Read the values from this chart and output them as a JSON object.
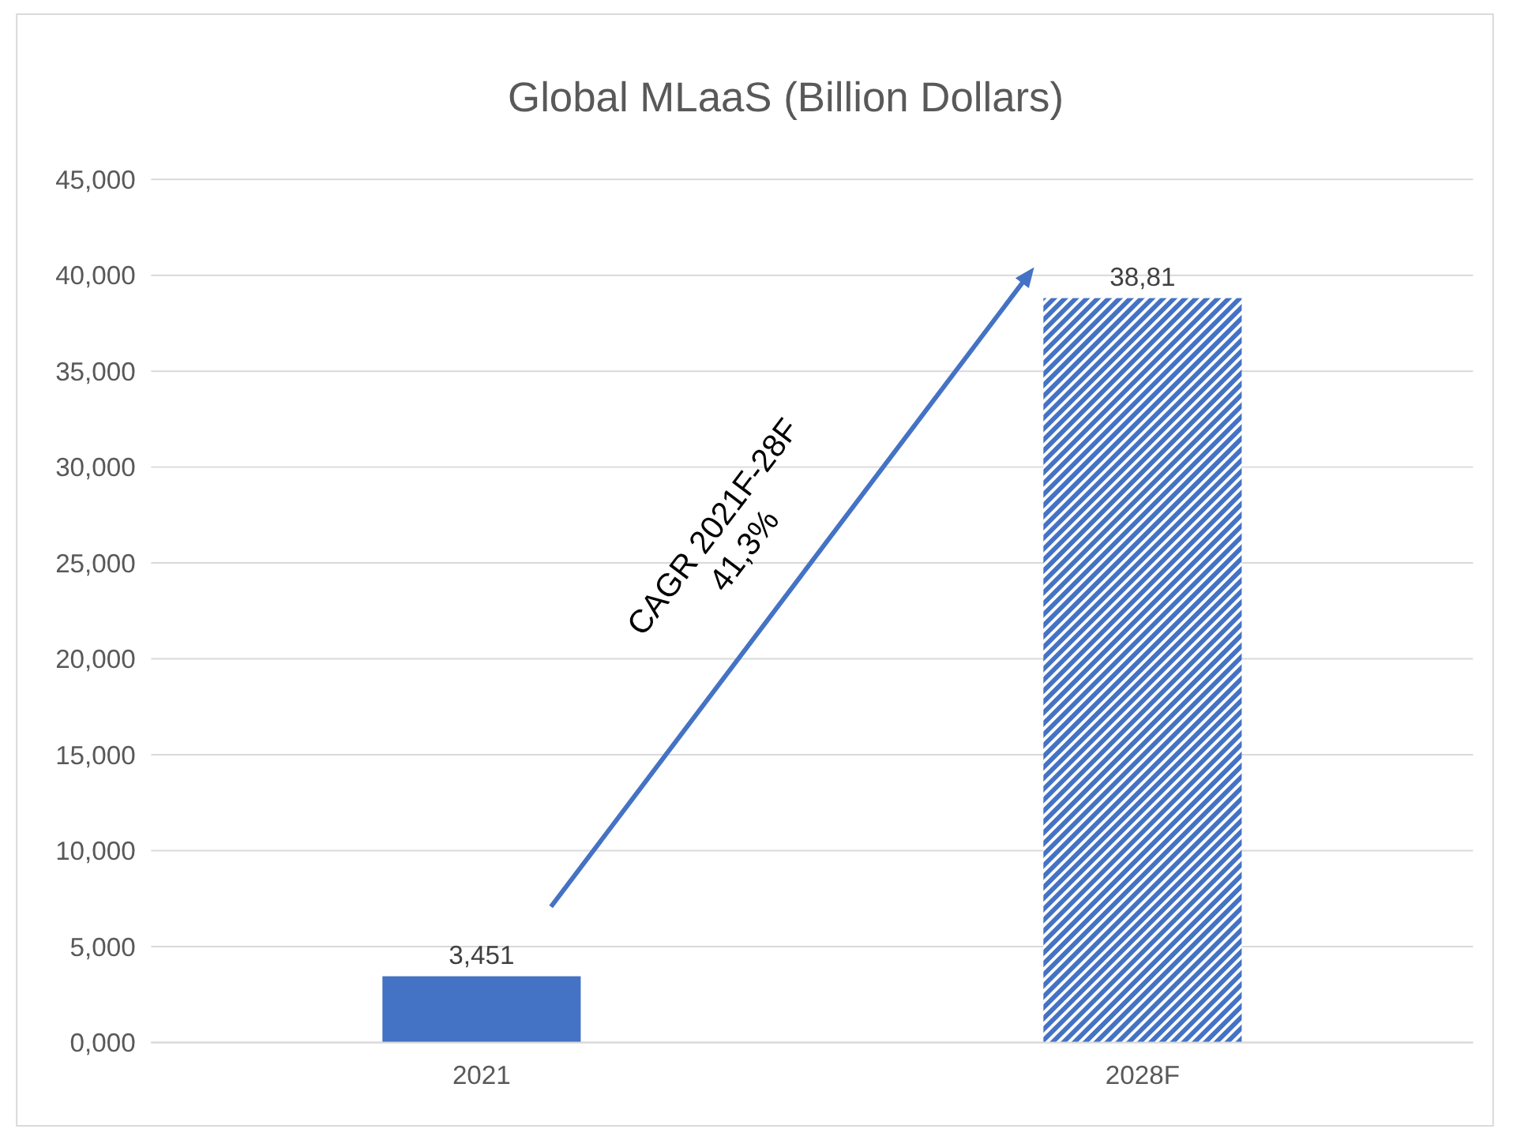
{
  "chart_data": {
    "type": "bar",
    "title": "Global MLaaS (Billion Dollars)",
    "categories": [
      "2021",
      "2028F"
    ],
    "series": [
      {
        "color": "#4472c4",
        "values": [
          3.451,
          null
        ],
        "value_labels": [
          "3,451",
          null
        ]
      },
      {
        "color": "#4472c4",
        "values": [
          null,
          38.81
        ],
        "value_labels": [
          null,
          "38,81"
        ]
      }
    ],
    "ylim": [
      0,
      45
    ],
    "yticks": [
      {
        "value": 0,
        "label": "0,000"
      },
      {
        "value": 5,
        "label": "5,000"
      },
      {
        "value": 10,
        "label": "10,000"
      },
      {
        "value": 15,
        "label": "15,000"
      },
      {
        "value": 20,
        "label": "20,000"
      },
      {
        "value": 25,
        "label": "25,000"
      },
      {
        "value": 30,
        "label": "30,000"
      },
      {
        "value": 35,
        "label": "35,000"
      },
      {
        "value": 40,
        "label": "40,000"
      },
      {
        "value": 45,
        "label": "45,000"
      }
    ],
    "grid": "y",
    "annotations": [
      "CAGR 2021F-28F\n41,3%"
    ]
  }
}
